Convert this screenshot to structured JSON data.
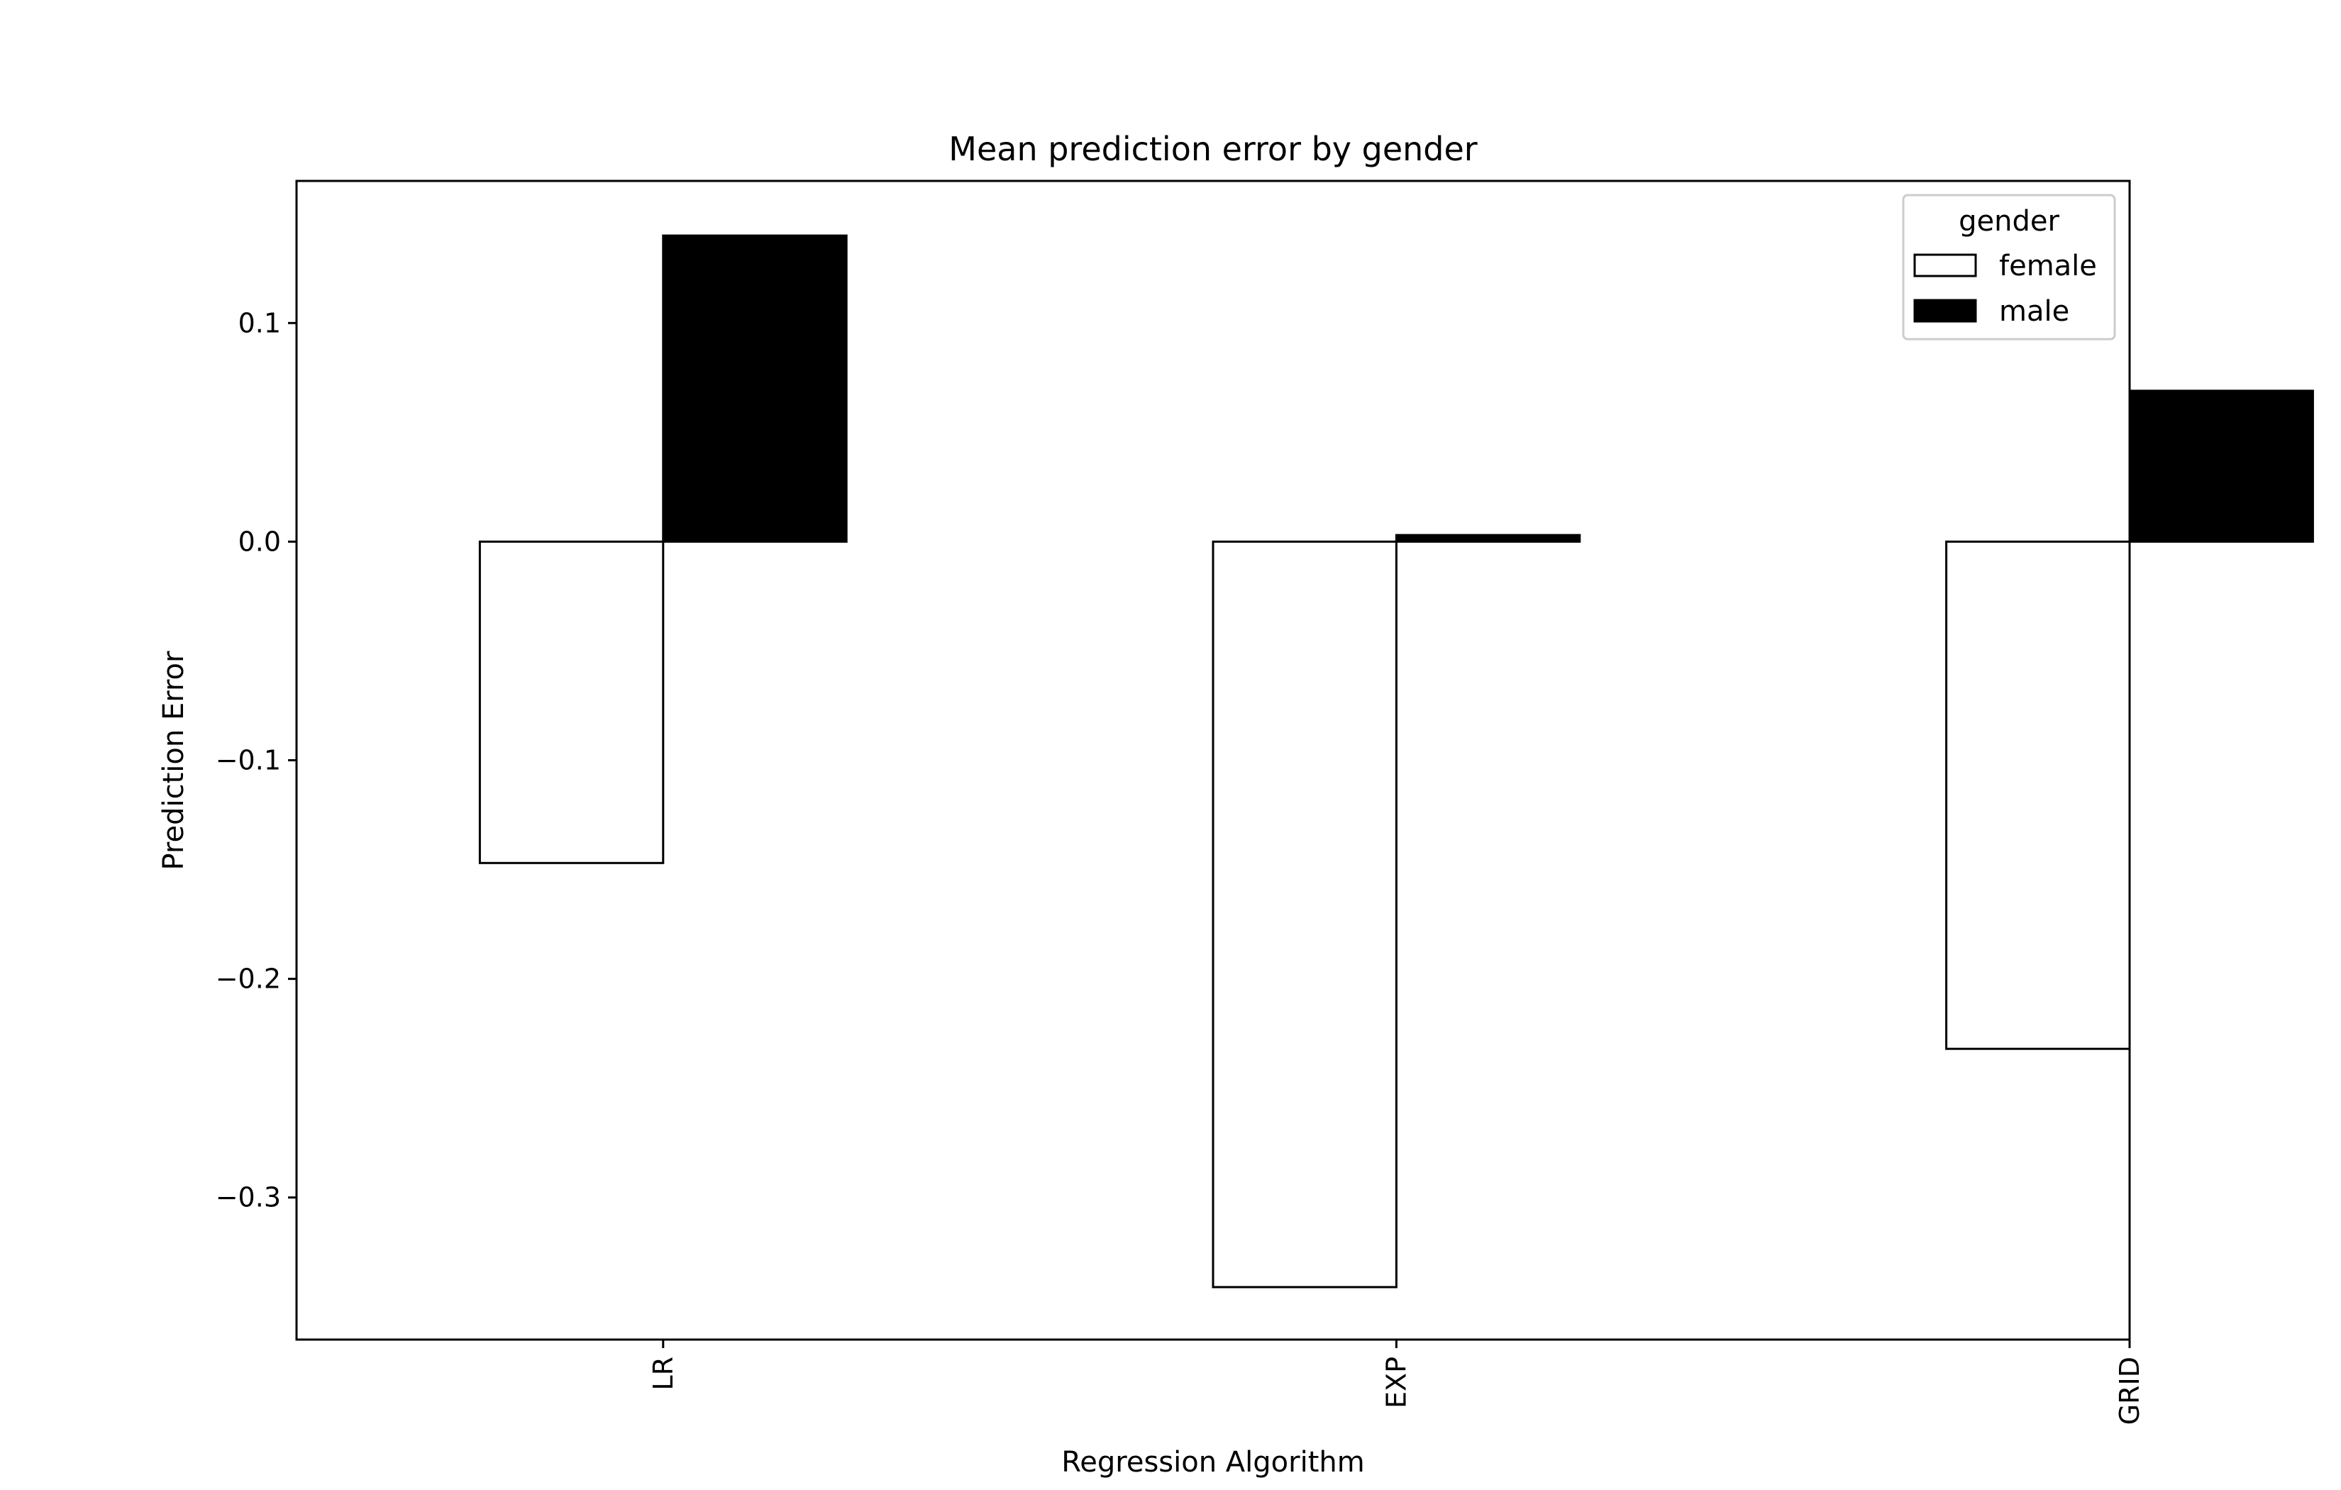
{
  "chart_data": {
    "type": "bar",
    "title": "Mean prediction error by gender",
    "xlabel": "Regression Algorithm",
    "ylabel": "Prediction Error",
    "categories": [
      "LR",
      "EXP",
      "GRID"
    ],
    "series": [
      {
        "name": "female",
        "values": [
          -0.147,
          -0.341,
          -0.232
        ],
        "fill": "#ffffff",
        "stroke": "#000000"
      },
      {
        "name": "male",
        "values": [
          0.14,
          0.003,
          0.069
        ],
        "fill": "#000000",
        "stroke": "#000000"
      }
    ],
    "ylim": [
      -0.365,
      0.165
    ],
    "yticks": [
      0.1,
      0.0,
      -0.1,
      -0.2,
      -0.3
    ],
    "ytick_labels": [
      "0.1",
      "0.0",
      "−0.1",
      "−0.2",
      "−0.3"
    ],
    "grid": false,
    "legend": {
      "title": "gender",
      "position": "top-right"
    }
  }
}
